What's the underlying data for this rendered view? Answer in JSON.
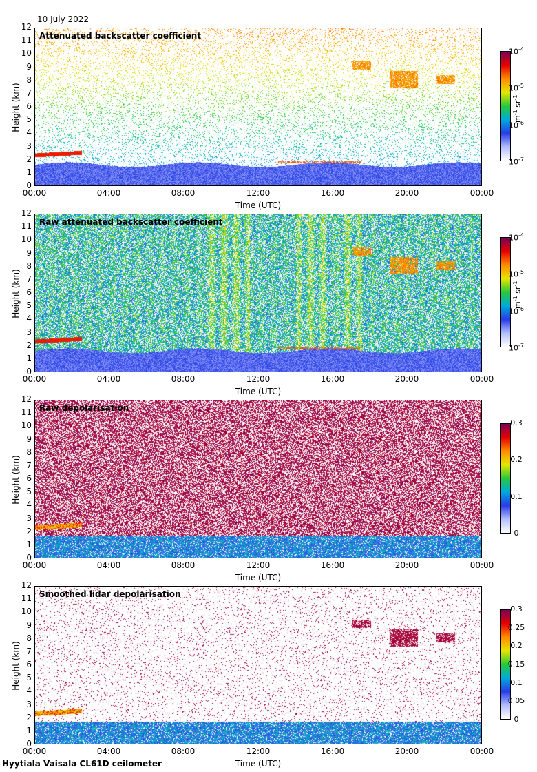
{
  "date_label": "10 July 2022",
  "footer": "Hyytiala Vaisala CL61D ceilometer",
  "chart_data": [
    {
      "type": "heatmap",
      "title": "Attenuated backscatter coefficient",
      "xlabel": "Time (UTC)",
      "ylabel": "Height (km)",
      "x_ticks": [
        "00:00",
        "04:00",
        "08:00",
        "12:00",
        "16:00",
        "20:00",
        "00:00"
      ],
      "y_ticks": [
        0,
        1,
        2,
        3,
        4,
        5,
        6,
        7,
        8,
        9,
        10,
        11,
        12
      ],
      "ylim": [
        0,
        12
      ],
      "colorbar": {
        "scale": "log",
        "range": [
          1e-07,
          0.0001
        ],
        "ticks": [
          "10",
          "10",
          "10",
          "10"
        ],
        "exponents": [
          "-7",
          "-6",
          "-5",
          "-4"
        ],
        "unit": "m",
        "unit_exp1": "-1",
        "unit_mid": " sr",
        "unit_exp2": "-1"
      }
    },
    {
      "type": "heatmap",
      "title": "Raw attenuated backscatter coefficient",
      "xlabel": "Time (UTC)",
      "ylabel": "Height (km)",
      "x_ticks": [
        "00:00",
        "04:00",
        "08:00",
        "12:00",
        "16:00",
        "20:00",
        "00:00"
      ],
      "y_ticks": [
        0,
        1,
        2,
        3,
        4,
        5,
        6,
        7,
        8,
        9,
        10,
        11,
        12
      ],
      "ylim": [
        0,
        12
      ],
      "colorbar": {
        "scale": "log",
        "range": [
          1e-07,
          0.0001
        ],
        "ticks": [
          "10",
          "10",
          "10",
          "10"
        ],
        "exponents": [
          "-7",
          "-6",
          "-5",
          "-4"
        ],
        "unit": "m",
        "unit_exp1": "-1",
        "unit_mid": " sr",
        "unit_exp2": "-1"
      }
    },
    {
      "type": "heatmap",
      "title": "Raw depolarisation",
      "xlabel": "Time (UTC)",
      "ylabel": "Height (km)",
      "x_ticks": [
        "00:00",
        "04:00",
        "08:00",
        "12:00",
        "16:00",
        "20:00",
        "00:00"
      ],
      "y_ticks": [
        0,
        1,
        2,
        3,
        4,
        5,
        6,
        7,
        8,
        9,
        10,
        11,
        12
      ],
      "ylim": [
        0,
        12
      ],
      "colorbar": {
        "scale": "linear",
        "range": [
          0,
          0.3
        ],
        "ticks": [
          "0",
          "0.1",
          "0.2",
          "0.3"
        ]
      }
    },
    {
      "type": "heatmap",
      "title": "Smoothed lidar depolarisation",
      "xlabel": "Time (UTC)",
      "ylabel": "Height (km)",
      "x_ticks": [
        "00:00",
        "04:00",
        "08:00",
        "12:00",
        "16:00",
        "20:00",
        "00:00"
      ],
      "y_ticks": [
        0,
        1,
        2,
        3,
        4,
        5,
        6,
        7,
        8,
        9,
        10,
        11,
        12
      ],
      "ylim": [
        0,
        12
      ],
      "colorbar": {
        "scale": "linear",
        "range": [
          0,
          0.3
        ],
        "ticks": [
          "0",
          "0.05",
          "0.1",
          "0.15",
          "0.2",
          "0.25",
          "0.3"
        ]
      }
    }
  ]
}
